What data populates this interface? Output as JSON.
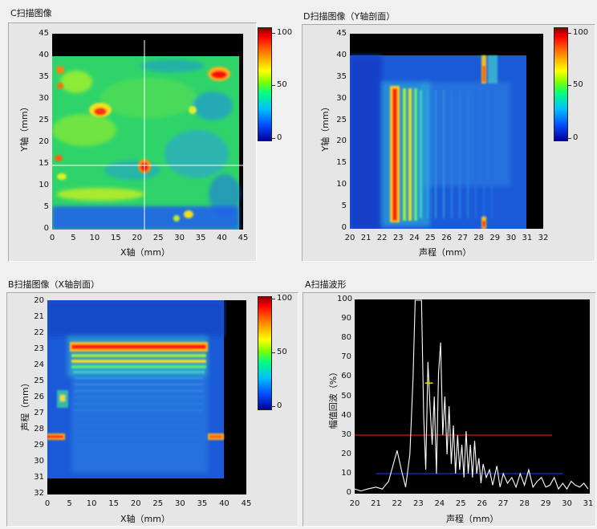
{
  "panels": {
    "c": {
      "title": "C扫描图像",
      "xlabel": "X轴（mm）",
      "ylabel": "Y轴（mm）",
      "xticks": [
        "0",
        "5",
        "10",
        "15",
        "20",
        "25",
        "30",
        "35",
        "40",
        "45"
      ],
      "yticks": [
        "45",
        "40",
        "35",
        "30",
        "25",
        "20",
        "15",
        "10",
        "5",
        "0"
      ],
      "colorbar": [
        "100",
        "50",
        "0"
      ]
    },
    "d": {
      "title": "D扫描图像（Y轴剖面）",
      "xlabel": "声程（mm）",
      "ylabel": "Y轴（mm）",
      "xticks": [
        "20",
        "21",
        "22",
        "23",
        "24",
        "25",
        "26",
        "27",
        "28",
        "29",
        "30",
        "31",
        "32"
      ],
      "yticks": [
        "45",
        "40",
        "35",
        "30",
        "25",
        "20",
        "15",
        "10",
        "5",
        "0"
      ],
      "colorbar": [
        "100",
        "50",
        "0"
      ]
    },
    "b": {
      "title": "B扫描图像（X轴剖面）",
      "xlabel": "X轴（mm）",
      "ylabel": "声程（mm）",
      "xticks": [
        "0",
        "5",
        "10",
        "15",
        "20",
        "25",
        "30",
        "35",
        "40",
        "45"
      ],
      "yticks": [
        "20",
        "21",
        "22",
        "23",
        "24",
        "25",
        "26",
        "27",
        "28",
        "29",
        "30",
        "31",
        "32"
      ],
      "colorbar": [
        "100",
        "50",
        "0"
      ]
    },
    "a": {
      "title": "A扫描波形",
      "xlabel": "声程（mm）",
      "ylabel": "幅值回波（%）",
      "xticks": [
        "20",
        "21",
        "22",
        "23",
        "24",
        "25",
        "26",
        "27",
        "28",
        "29",
        "30",
        "31"
      ],
      "yticks": [
        "100",
        "90",
        "80",
        "70",
        "60",
        "50",
        "40",
        "30",
        "20",
        "10",
        "0"
      ]
    }
  },
  "colors": {
    "red_gate": "#ff2020",
    "blue_gate": "#1e3cff",
    "waveform": "#ffffff",
    "cursor": "#e0e000"
  },
  "chart_data": [
    {
      "type": "heatmap",
      "title": "C扫描图像",
      "xlabel": "X轴（mm）",
      "ylabel": "Y轴（mm）",
      "xlim": [
        0,
        45
      ],
      "ylim": [
        0,
        45
      ],
      "colorbar_range": [
        0,
        100
      ],
      "data_extent": {
        "x": [
          0,
          44
        ],
        "y": [
          0,
          40
        ]
      },
      "crosshair": {
        "x": 21.5,
        "y": 15
      },
      "hotspots": [
        {
          "x": 21.5,
          "y": 15,
          "value": 100
        },
        {
          "x": 11,
          "y": 27,
          "value": 95
        },
        {
          "x": 39,
          "y": 36.5,
          "value": 100
        }
      ]
    },
    {
      "type": "heatmap",
      "title": "D扫描图像（Y轴剖面）",
      "xlabel": "声程（mm）",
      "ylabel": "Y轴（mm）",
      "xlim": [
        20,
        32
      ],
      "ylim": [
        0,
        45
      ],
      "colorbar_range": [
        0,
        100
      ],
      "data_extent": {
        "x": [
          20,
          31
        ],
        "y": [
          0,
          40
        ]
      },
      "bands": [
        {
          "x": 23,
          "value": 100
        },
        {
          "x": 23.5,
          "value": 75
        },
        {
          "x": 24,
          "value": 60
        },
        {
          "x": 24.5,
          "value": 45
        },
        {
          "x": 28.5,
          "value": 60
        }
      ]
    },
    {
      "type": "heatmap",
      "title": "B扫描图像（X轴剖面）",
      "xlabel": "X轴（mm）",
      "ylabel": "声程（mm）",
      "xlim": [
        0,
        45
      ],
      "ylim": [
        32,
        20
      ],
      "colorbar_range": [
        0,
        100
      ],
      "data_extent": {
        "x": [
          0,
          41
        ],
        "y": [
          20,
          31
        ]
      },
      "bands": [
        {
          "y": 23,
          "value": 100
        },
        {
          "y": 23.5,
          "value": 75
        },
        {
          "y": 24,
          "value": 55
        },
        {
          "y": 24.6,
          "value": 45
        },
        {
          "y": 28.5,
          "value": 55
        }
      ]
    },
    {
      "type": "line",
      "title": "A扫描波形",
      "xlabel": "声程（mm）",
      "ylabel": "幅值回波（%）",
      "xlim": [
        20,
        31
      ],
      "ylim": [
        0,
        100
      ],
      "grid": false,
      "gates": [
        {
          "color": "red",
          "x": [
            20,
            29.3
          ],
          "y": 30
        },
        {
          "color": "blue",
          "x": [
            21,
            29.8
          ],
          "y": 10
        }
      ],
      "cursor": {
        "x": 23.5,
        "y": 57
      },
      "series": [
        {
          "x": [
            20,
            20.3,
            20.6,
            21,
            21.3,
            21.6,
            21.8,
            22,
            22.2,
            22.4,
            22.6,
            22.75,
            22.85,
            22.95,
            23.05,
            23.15,
            23.25,
            23.35,
            23.45,
            23.55,
            23.65,
            23.75,
            23.85,
            23.95,
            24.05,
            24.15,
            24.25,
            24.35,
            24.45,
            24.55,
            24.65,
            24.75,
            24.85,
            24.95,
            25.05,
            25.15,
            25.25,
            25.35,
            25.45,
            25.55,
            25.65,
            25.75,
            25.85,
            25.95,
            26.05,
            26.2,
            26.35,
            26.5,
            26.7,
            26.85,
            27,
            27.2,
            27.4,
            27.6,
            27.8,
            28,
            28.2,
            28.4,
            28.6,
            28.8,
            29,
            29.2,
            29.4,
            29.6,
            29.8,
            30,
            30.2,
            30.4,
            30.6,
            30.8,
            31
          ],
          "y": [
            2,
            1,
            2,
            3,
            2,
            6,
            14,
            22,
            12,
            3,
            20,
            60,
            100,
            100,
            100,
            100,
            40,
            12,
            68,
            45,
            25,
            50,
            10,
            62,
            78,
            30,
            50,
            20,
            45,
            15,
            35,
            10,
            30,
            12,
            25,
            8,
            32,
            10,
            25,
            8,
            27,
            10,
            18,
            5,
            15,
            8,
            12,
            4,
            14,
            3,
            10,
            5,
            8,
            3,
            10,
            4,
            12,
            3,
            6,
            8,
            3,
            4,
            8,
            2,
            5,
            2,
            6,
            4,
            3,
            5,
            2
          ]
        }
      ]
    }
  ]
}
